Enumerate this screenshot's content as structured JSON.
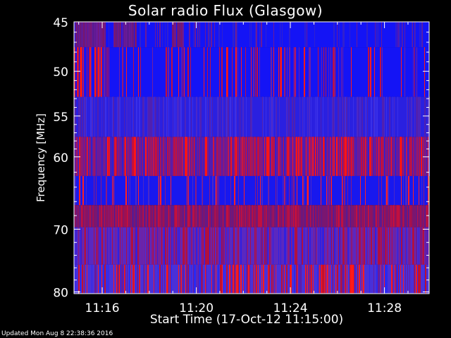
{
  "chart_data": {
    "type": "heatmap",
    "title": "Solar radio Flux (Glasgow)",
    "xlabel": "Start Time (17-Oct-12 11:15:00)",
    "ylabel": "Frequency [MHz]",
    "x_tick_labels": [
      "11:16",
      "11:20",
      "11:24",
      "11:28"
    ],
    "x_tick_minutes": [
      1,
      5,
      9,
      13
    ],
    "xlim_minutes": [
      -0.2,
      14.9
    ],
    "y_tick_labels": [
      "45",
      "50",
      "55",
      "60",
      "70",
      "80"
    ],
    "y_tick_values": [
      45,
      50,
      55,
      60,
      70,
      80
    ],
    "ylim": [
      80.3,
      45
    ],
    "y_scale": "log",
    "colormap": [
      "#1010ff",
      "#5030c0",
      "#a01060",
      "#ff1010"
    ],
    "bands": [
      {
        "freq_range": [
          45,
          47.5
        ],
        "level": "mostly blue, purple left"
      },
      {
        "freq_range": [
          47.5,
          52.8
        ],
        "level": "blue with red streaks left"
      },
      {
        "freq_range": [
          52.8,
          57.5
        ],
        "level": "blue-purple"
      },
      {
        "freq_range": [
          57.5,
          62.5
        ],
        "level": "red-purple streaks"
      },
      {
        "freq_range": [
          62.5,
          66.5
        ],
        "level": "blue with red lines"
      },
      {
        "freq_range": [
          66.5,
          69.7
        ],
        "level": "dark red-purple"
      },
      {
        "freq_range": [
          69.7,
          75.5
        ],
        "level": "purple with red streaks"
      },
      {
        "freq_range": [
          75.5,
          80.3
        ],
        "level": "purple-blue with red streaks"
      }
    ]
  },
  "footer": "Updated Mon Aug  8 22:38:36 2016"
}
